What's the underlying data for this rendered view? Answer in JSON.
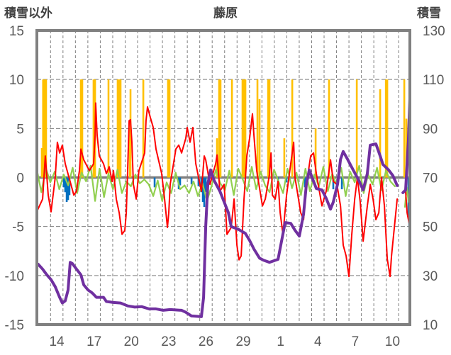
{
  "chart_data": {
    "type": "bar+line",
    "title": "藤原",
    "ylabel_left": "積雪以外",
    "ylabel_right": "積雪",
    "ylim_left": [
      -15,
      15
    ],
    "ylim_right": [
      10,
      130
    ],
    "left_ticks": [
      "15",
      "10",
      "5",
      "0",
      "-5",
      "-10",
      "-15"
    ],
    "left_tick_values": [
      15,
      10,
      5,
      0,
      -5,
      -10,
      -15
    ],
    "right_ticks": [
      "130",
      "110",
      "90",
      "70",
      "50",
      "30",
      "10"
    ],
    "right_tick_values": [
      130,
      110,
      90,
      70,
      50,
      30,
      10
    ],
    "xlim": [
      0,
      30
    ],
    "x_tick_labels": [
      "14",
      "17",
      "20",
      "23",
      "26",
      "29",
      "1",
      "4",
      "7",
      "10"
    ],
    "x_tick_positions": [
      1.6,
      4.6,
      7.6,
      10.6,
      13.6,
      16.6,
      19.6,
      22.6,
      25.6,
      28.6
    ],
    "grid": true,
    "colors": {
      "yellow_bars": "#FFC000",
      "blue_bars": "#0070C0",
      "red_line": "#FF0000",
      "green_line": "#92D050",
      "purple_line": "#7030A0",
      "frame": "#808080"
    },
    "yellow_bars": [
      [
        0.4,
        3
      ],
      [
        0.5,
        10
      ],
      [
        0.63,
        10
      ],
      [
        0.74,
        10
      ],
      [
        3.54,
        10
      ],
      [
        3.65,
        10
      ],
      [
        4.56,
        10
      ],
      [
        4.68,
        10
      ],
      [
        5.76,
        10
      ],
      [
        6.5,
        10
      ],
      [
        6.62,
        10
      ],
      [
        6.73,
        10
      ],
      [
        7.47,
        5
      ],
      [
        7.53,
        9
      ],
      [
        8.56,
        10
      ],
      [
        10.55,
        10
      ],
      [
        10.67,
        10
      ],
      [
        14.49,
        4
      ],
      [
        14.66,
        10
      ],
      [
        14.77,
        10
      ],
      [
        15.69,
        10
      ],
      [
        16.54,
        10
      ],
      [
        16.66,
        10
      ],
      [
        16.77,
        10
      ],
      [
        17.74,
        10
      ],
      [
        17.91,
        8
      ],
      [
        18.6,
        10
      ],
      [
        18.71,
        10
      ],
      [
        19.9,
        4
      ],
      [
        20.54,
        10
      ],
      [
        22.42,
        5
      ],
      [
        23.5,
        10
      ],
      [
        25.73,
        10
      ],
      [
        27.61,
        9
      ],
      [
        28.07,
        10
      ],
      [
        28.18,
        10
      ],
      [
        29.55,
        10
      ],
      [
        29.72,
        6
      ]
    ],
    "blue_bars": [
      [
        2.17,
        -1
      ],
      [
        2.28,
        -1.5
      ],
      [
        2.4,
        -2.5
      ],
      [
        2.51,
        -2.3
      ],
      [
        2.62,
        -1.8
      ],
      [
        9.47,
        -1
      ],
      [
        11.41,
        -1.2
      ],
      [
        11.52,
        -0.8
      ],
      [
        12.44,
        -0.7
      ],
      [
        13.0,
        -0.9
      ],
      [
        13.23,
        -1.5
      ],
      [
        13.35,
        -2.5
      ],
      [
        13.46,
        -3
      ],
      [
        13.58,
        -1.5
      ],
      [
        19.4,
        -0.5
      ],
      [
        20.08,
        -0.5
      ],
      [
        21.56,
        -1
      ],
      [
        23.84,
        -1.2
      ],
      [
        24.53,
        -1.2
      ],
      [
        29.89,
        -4
      ],
      [
        29.95,
        -5
      ]
    ],
    "red_line": [
      [
        0.06,
        -3.3
      ],
      [
        0.46,
        -2.2
      ],
      [
        0.68,
        2.2
      ],
      [
        0.91,
        -1.8
      ],
      [
        1.14,
        -3.5
      ],
      [
        1.48,
        0
      ],
      [
        1.65,
        3.6
      ],
      [
        1.83,
        2.5
      ],
      [
        2.05,
        3.3
      ],
      [
        2.28,
        1.4
      ],
      [
        2.74,
        -0.7
      ],
      [
        2.97,
        -1.8
      ],
      [
        3.19,
        -1.4
      ],
      [
        3.42,
        0.7
      ],
      [
        3.54,
        2.9
      ],
      [
        3.77,
        1.8
      ],
      [
        4.22,
        0.7
      ],
      [
        4.56,
        1.4
      ],
      [
        4.68,
        4.3
      ],
      [
        4.73,
        7.6
      ],
      [
        4.85,
        4.3
      ],
      [
        5.02,
        2.2
      ],
      [
        5.36,
        1.4
      ],
      [
        5.59,
        0.4
      ],
      [
        5.82,
        1.1
      ],
      [
        6.05,
        -0.4
      ],
      [
        6.16,
        0.7
      ],
      [
        6.39,
        -2.2
      ],
      [
        6.62,
        -3.6
      ],
      [
        6.85,
        -5.8
      ],
      [
        7.07,
        -5.4
      ],
      [
        7.19,
        -3.6
      ],
      [
        7.3,
        0.7
      ],
      [
        7.42,
        5.8
      ],
      [
        7.53,
        5.9
      ],
      [
        7.64,
        3.6
      ],
      [
        7.76,
        -0.7
      ],
      [
        7.99,
        -2.2
      ],
      [
        8.21,
        0.7
      ],
      [
        8.67,
        2.5
      ],
      [
        8.78,
        5.8
      ],
      [
        8.9,
        7.2
      ],
      [
        9.13,
        6.1
      ],
      [
        9.36,
        5.1
      ],
      [
        9.58,
        2.9
      ],
      [
        10.04,
        0.4
      ],
      [
        10.27,
        -2.2
      ],
      [
        10.5,
        -5.1
      ],
      [
        10.61,
        -3.6
      ],
      [
        10.72,
        -0.7
      ],
      [
        11.18,
        2.9
      ],
      [
        11.41,
        3.3
      ],
      [
        11.64,
        2.5
      ],
      [
        11.98,
        4.0
      ],
      [
        12.09,
        5.1
      ],
      [
        12.32,
        3.6
      ],
      [
        12.55,
        5.1
      ],
      [
        12.78,
        1.4
      ],
      [
        13.23,
        -1.4
      ],
      [
        13.46,
        2.2
      ],
      [
        13.58,
        1.8
      ],
      [
        13.92,
        -0.7
      ],
      [
        14.38,
        1.4
      ],
      [
        14.49,
        2.3
      ],
      [
        14.72,
        -1.4
      ],
      [
        15.06,
        -0.7
      ],
      [
        15.29,
        -5.8
      ],
      [
        15.63,
        -5.1
      ],
      [
        15.86,
        -2.2
      ],
      [
        16.09,
        -6.9
      ],
      [
        16.26,
        -8.4
      ],
      [
        16.43,
        -8.0
      ],
      [
        16.66,
        -2.2
      ],
      [
        16.89,
        2.2
      ],
      [
        17.11,
        4.0
      ],
      [
        17.34,
        6.5
      ],
      [
        17.46,
        4.3
      ],
      [
        17.68,
        0.7
      ],
      [
        18.14,
        -2.9
      ],
      [
        18.37,
        -2.2
      ],
      [
        18.71,
        0.3
      ],
      [
        18.83,
        2.5
      ],
      [
        18.94,
        -1.8
      ],
      [
        19.17,
        -2.2
      ],
      [
        19.4,
        -0.4
      ],
      [
        19.57,
        -3.6
      ],
      [
        19.79,
        -5.8
      ],
      [
        20.08,
        -1.8
      ],
      [
        20.42,
        1.4
      ],
      [
        20.65,
        3.6
      ],
      [
        20.76,
        0
      ],
      [
        21.22,
        -3.6
      ],
      [
        21.45,
        -4.3
      ],
      [
        21.68,
        -0.7
      ],
      [
        22.02,
        2.2
      ],
      [
        22.25,
        2.5
      ],
      [
        22.48,
        0.4
      ],
      [
        22.93,
        -2.9
      ],
      [
        23.27,
        -1.4
      ],
      [
        23.62,
        1.8
      ],
      [
        23.84,
        -0.4
      ],
      [
        24.13,
        -0.7
      ],
      [
        24.42,
        -2.9
      ],
      [
        24.64,
        -6.9
      ],
      [
        24.87,
        -8.0
      ],
      [
        25.1,
        -10.1
      ],
      [
        25.33,
        -5.8
      ],
      [
        25.56,
        -2.2
      ],
      [
        25.78,
        0
      ],
      [
        26.01,
        -2.5
      ],
      [
        26.24,
        -6.5
      ],
      [
        26.58,
        -2.9
      ],
      [
        26.81,
        -0.7
      ],
      [
        27.04,
        -2.2
      ],
      [
        27.27,
        -4.3
      ],
      [
        27.5,
        -3.6
      ],
      [
        27.72,
        0
      ],
      [
        27.95,
        -2.9
      ],
      [
        28.18,
        -8.3
      ],
      [
        28.41,
        -10.1
      ],
      [
        28.52,
        -8.0
      ],
      [
        28.75,
        -5.1
      ],
      [
        28.98,
        -2.2
      ],
      null,
      [
        29.66,
        -1.4
      ],
      [
        29.78,
        -3.6
      ],
      [
        30.0,
        -5.1
      ]
    ],
    "green_line": {
      "x_start": 0,
      "x_step": 0.36,
      "values": [
        0.8,
        -1.5,
        1.0,
        -0.5,
        0.6,
        -1.2,
        0.3,
        -0.8,
        1.0,
        -1.6,
        0.5,
        -0.4,
        1.2,
        -2.4,
        0.9,
        -2.0,
        0.4,
        -1.2,
        0.8,
        -1.6,
        -0.4,
        -0.9,
        0.3,
        -0.6,
        -0.2,
        -0.7,
        -1.9,
        -0.3,
        -2.4,
        -0.5,
        -1.6,
        0.5,
        -1.2,
        -0.8,
        -1.6,
        -0.4,
        -1.9,
        -0.6,
        -2.4,
        -0.9,
        0.8,
        -0.6,
        -1.3,
        0.7,
        -1.8,
        0.9,
        -0.2,
        -1.4,
        1.1,
        -1.2,
        0.6,
        -0.8,
        -1.5,
        0.8,
        -0.4,
        -1.6,
        0.9,
        -1.1,
        0.5,
        -1.8,
        0.9,
        -1.4,
        0.3,
        -0.9,
        1.1,
        -1.4,
        0.4,
        -0.8,
        1.0,
        -1.9,
        0.6,
        -0.5,
        1.2,
        -1.6,
        0.3,
        -0.7,
        1.0,
        -1.3,
        0.7,
        -0.4,
        -0.9
      ],
      "tail": [
        [
          29.6,
          -3.0
        ],
        [
          29.75,
          -1.0
        ],
        [
          29.9,
          -2.5
        ]
      ]
    },
    "purple_line": [
      [
        0.1,
        34.6
      ],
      [
        0.46,
        32.6
      ],
      [
        0.8,
        30.3
      ],
      [
        1.14,
        28.3
      ],
      [
        1.48,
        25.4
      ],
      [
        1.83,
        21.1
      ],
      [
        2.05,
        18.8
      ],
      [
        2.28,
        19.7
      ],
      [
        2.51,
        24.1
      ],
      [
        2.68,
        35.4
      ],
      [
        2.85,
        34.9
      ],
      [
        3.19,
        32.6
      ],
      [
        3.54,
        30.3
      ],
      [
        3.77,
        26.2
      ],
      [
        4.11,
        24.1
      ],
      [
        4.45,
        22.9
      ],
      [
        4.79,
        21.1
      ],
      [
        5.36,
        21.1
      ],
      [
        5.59,
        19.4
      ],
      [
        6.16,
        19.0
      ],
      [
        6.73,
        18.8
      ],
      [
        7.3,
        17.6
      ],
      [
        7.87,
        17.1
      ],
      [
        8.44,
        17.3
      ],
      [
        9.01,
        16.4
      ],
      [
        9.58,
        16.4
      ],
      [
        10.15,
        15.8
      ],
      [
        10.72,
        16.1
      ],
      [
        11.64,
        15.8
      ],
      [
        11.98,
        15.0
      ],
      [
        12.44,
        13.5
      ],
      [
        13.23,
        13.2
      ],
      [
        13.41,
        21.1
      ],
      [
        13.58,
        50.0
      ],
      [
        13.75,
        67.4
      ],
      [
        13.98,
        73.1
      ],
      [
        14.26,
        68.8
      ],
      [
        14.72,
        64.4
      ],
      [
        15.17,
        58.6
      ],
      [
        15.4,
        55.7
      ],
      [
        15.63,
        50.0
      ],
      [
        16.2,
        48.9
      ],
      [
        16.77,
        47.2
      ],
      [
        17.11,
        44.3
      ],
      [
        17.46,
        40.8
      ],
      [
        17.91,
        37.1
      ],
      [
        18.25,
        36.2
      ],
      [
        18.71,
        35.4
      ],
      [
        19.4,
        36.6
      ],
      [
        19.97,
        51.6
      ],
      [
        20.42,
        51.3
      ],
      [
        20.76,
        48.5
      ],
      [
        21.11,
        46.1
      ],
      [
        21.45,
        55.1
      ],
      [
        21.68,
        67.4
      ],
      [
        21.91,
        73.1
      ],
      [
        22.13,
        70.1
      ],
      [
        22.48,
        65.5
      ],
      [
        22.93,
        64.9
      ],
      [
        23.27,
        61.5
      ],
      [
        23.62,
        57.1
      ],
      [
        23.84,
        60.0
      ],
      [
        24.19,
        67.4
      ],
      [
        24.42,
        77.4
      ],
      [
        24.64,
        80.6
      ],
      [
        24.99,
        77.4
      ],
      [
        25.44,
        73.1
      ],
      [
        25.9,
        68.8
      ],
      [
        26.24,
        64.9
      ],
      [
        26.58,
        71.6
      ],
      [
        26.81,
        83.2
      ],
      [
        27.27,
        83.7
      ],
      [
        27.61,
        78.8
      ],
      [
        27.84,
        75.3
      ],
      [
        28.29,
        73.1
      ],
      [
        28.64,
        70.7
      ],
      [
        28.98,
        66.7
      ],
      null,
      [
        29.44,
        63.8
      ],
      [
        29.66,
        64.9
      ],
      [
        29.88,
        85.0
      ],
      [
        30.0,
        102.0
      ]
    ]
  }
}
